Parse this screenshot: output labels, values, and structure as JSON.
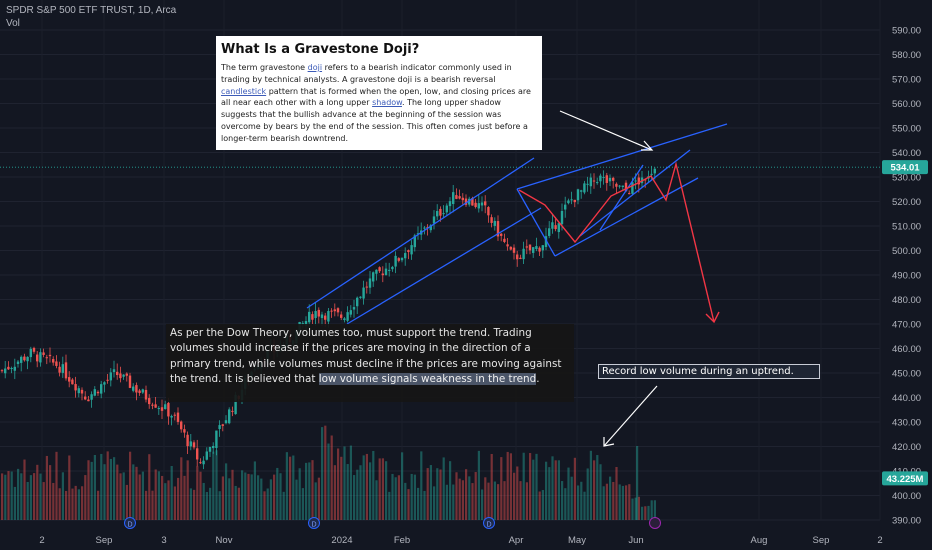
{
  "header": {
    "symbol_line": "SPDR S&P 500 ETF TRUST, 1D, Arca",
    "volume_label": "Vol"
  },
  "info_box": {
    "title": "What Is a Gravestone Doji?",
    "p1": "The term gravestone ",
    "link1": "doji",
    "p2": " refers to a bearish indicator commonly used in trading by technical analysts. A gravestone doji is a bearish reversal ",
    "link2": "candlestick",
    "p3": " pattern that is formed when the open, low, and closing prices are all near each other with a long upper ",
    "link3": "shadow",
    "p4": ". The long upper shadow suggests that the bullish advance at the beginning of the session was overcome by bears by the end of the session. This often comes just before a longer-term bearish downtrend."
  },
  "dow_note": {
    "text": "As per the Dow Theory, volumes too, must support the trend. Trading volumes should increase if the prices are moving in the direction of a primary trend, while volumes must decline if the prices are moving against the trend. It is believed that ",
    "highlight": "low volume signals weakness in the trend",
    "end": "."
  },
  "record_note": "Record low volume during an uptrend.",
  "colors": {
    "up": "#26a69a",
    "down": "#ef5350",
    "trendline": "#2962ff",
    "arrow_red": "#f23645",
    "arrow_white": "#ffffff",
    "background": "#131722",
    "axis_text": "#b2b5be"
  },
  "chart_data": {
    "type": "candlestick",
    "title": "SPDR S&P 500 ETF TRUST, 1D, Arca",
    "y_ticks": [
      390,
      400,
      410,
      420,
      430,
      440,
      450,
      460,
      470,
      480,
      490,
      500,
      510,
      520,
      530,
      540,
      550,
      560,
      570,
      580,
      590
    ],
    "y_tick_labels": [
      "390.00",
      "400.00",
      "410.00",
      "420.00",
      "430.00",
      "440.00",
      "450.00",
      "460.00",
      "470.00",
      "480.00",
      "490.00",
      "500.00",
      "510.00",
      "520.00",
      "530.00",
      "540.00",
      "550.00",
      "560.00",
      "570.00",
      "580.00",
      "590.00"
    ],
    "ylim": [
      384,
      597
    ],
    "x_labels": [
      "2",
      "Sep",
      "3",
      "Nov",
      "2024",
      "Feb",
      "Apr",
      "May",
      "Jun",
      "Aug",
      "Sep",
      "2"
    ],
    "last_price": "534.01",
    "last_volume": "43.225M",
    "close_path": [
      {
        "x": "Jul",
        "close": 451
      },
      {
        "x": "late Jul",
        "close": 458
      },
      {
        "x": "early Aug",
        "close": 453
      },
      {
        "x": "mid Aug",
        "close": 440
      },
      {
        "x": "Sep",
        "close": 450
      },
      {
        "x": "mid Sep",
        "close": 441
      },
      {
        "x": "early Oct",
        "close": 433
      },
      {
        "x": "late Oct",
        "close": 413
      },
      {
        "x": "Nov",
        "close": 434
      },
      {
        "x": "late Nov",
        "close": 455
      },
      {
        "x": "Dec",
        "close": 462
      },
      {
        "x": "late Dec",
        "close": 475
      },
      {
        "x": "Jan",
        "close": 473
      },
      {
        "x": "late Jan",
        "close": 488
      },
      {
        "x": "Feb",
        "close": 497
      },
      {
        "x": "Mar",
        "close": 510
      },
      {
        "x": "late Mar",
        "close": 523
      },
      {
        "x": "early Apr",
        "close": 517
      },
      {
        "x": "mid Apr",
        "close": 497
      },
      {
        "x": "late Apr",
        "close": 502
      },
      {
        "x": "May",
        "close": 520
      },
      {
        "x": "mid May",
        "close": 530
      },
      {
        "x": "late May",
        "close": 524
      },
      {
        "x": "Jun",
        "close": 534.01
      }
    ]
  }
}
